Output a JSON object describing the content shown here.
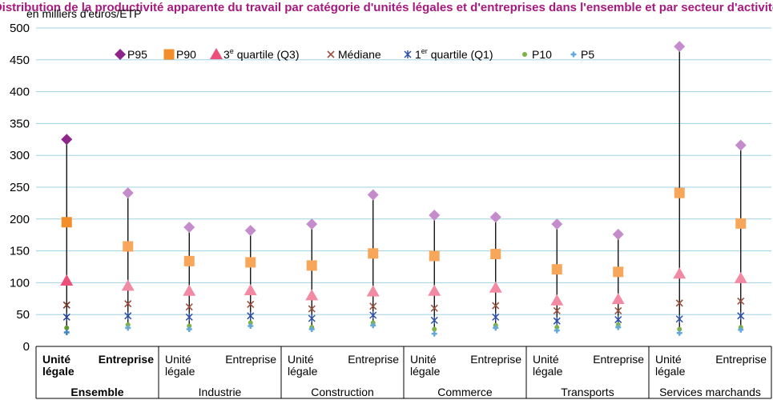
{
  "chart_data": {
    "type": "scatter",
    "title": "Distribution de la productivité apparente du travail par catégorie d'unités légales et d'entreprises dans l'ensemble et par secteur d'activité",
    "ylabel": "en milliers d'euros/ETP",
    "ylim": [
      0,
      500
    ],
    "yticks": [
      0,
      50,
      100,
      150,
      200,
      250,
      300,
      350,
      400,
      450,
      500
    ],
    "grid": true,
    "legend_position": "top",
    "legend": [
      {
        "key": "p95",
        "label": "P95",
        "sup": "",
        "suffix": "",
        "marker": "diamond",
        "color": "#c58ccb"
      },
      {
        "key": "p90",
        "label": "P90",
        "sup": "",
        "suffix": "",
        "marker": "square",
        "color": "#f7a65a"
      },
      {
        "key": "q3",
        "label": "3",
        "sup": "e",
        "suffix": " quartile (Q3)",
        "marker": "triangle",
        "color": "#f38aa4"
      },
      {
        "key": "median",
        "label": "Médiane",
        "sup": "",
        "suffix": "",
        "marker": "x",
        "color": "#9b5140"
      },
      {
        "key": "q1",
        "label": "1",
        "sup": "er",
        "suffix": " quartile (Q1)",
        "marker": "star",
        "color": "#2d4fa3"
      },
      {
        "key": "p10",
        "label": "P10",
        "sup": "",
        "suffix": "",
        "marker": "dot",
        "color": "#7cb342"
      },
      {
        "key": "p5",
        "label": "P5",
        "sup": "",
        "suffix": "",
        "marker": "plus",
        "color": "#64a8dc"
      }
    ],
    "groups": [
      {
        "name": "Ensemble",
        "bold": true,
        "categories": [
          "Unité légale",
          "Entreprise"
        ]
      },
      {
        "name": "Industrie",
        "bold": false,
        "categories": [
          "Unité légale",
          "Entreprise"
        ]
      },
      {
        "name": "Construction",
        "bold": false,
        "categories": [
          "Unité légale",
          "Entreprise"
        ]
      },
      {
        "name": "Commerce",
        "bold": false,
        "categories": [
          "Unité légale",
          "Entreprise"
        ]
      },
      {
        "name": "Transports",
        "bold": false,
        "categories": [
          "Unité légale",
          "Entreprise"
        ]
      },
      {
        "name": "Services marchands",
        "bold": false,
        "categories": [
          "Unité légale",
          "Entreprise"
        ]
      }
    ],
    "series": {
      "p95": [
        325,
        241,
        187,
        182,
        192,
        238,
        206,
        203,
        192,
        176,
        471,
        316
      ],
      "p90": [
        195,
        157,
        134,
        132,
        127,
        146,
        142,
        145,
        121,
        117,
        241,
        193
      ],
      "q3": [
        103,
        95,
        87,
        88,
        80,
        86,
        87,
        92,
        72,
        74,
        114,
        107
      ],
      "median": [
        65,
        67,
        62,
        66,
        59,
        63,
        60,
        64,
        56,
        56,
        68,
        71
      ],
      "q1": [
        46,
        48,
        46,
        48,
        44,
        49,
        41,
        46,
        40,
        42,
        43,
        48
      ],
      "p10": [
        29,
        34,
        32,
        37,
        30,
        37,
        27,
        33,
        30,
        34,
        27,
        30
      ],
      "p5": [
        22,
        29,
        27,
        32,
        27,
        33,
        20,
        29,
        25,
        30,
        21,
        26
      ]
    },
    "highlight_first_category_color": {
      "p95": "#8e2589",
      "p90": "#f28e2b",
      "q3": "#ee4e7a",
      "median": "#7a3322",
      "q1": "#1f3e8f",
      "p10": "#5f9a2c",
      "p5": "#3a86c9"
    }
  }
}
